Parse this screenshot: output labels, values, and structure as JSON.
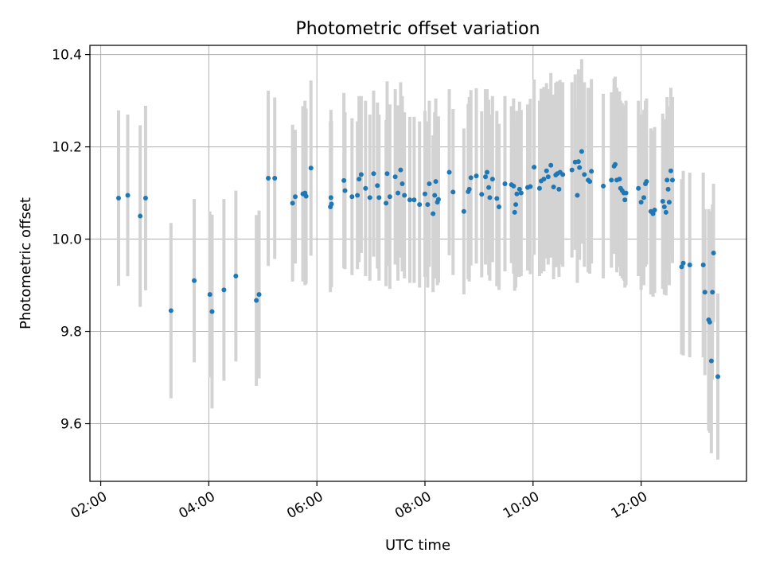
{
  "chart_data": {
    "type": "scatter",
    "title": "Photometric offset variation",
    "xlabel": "UTC time",
    "ylabel": "Photometric offset",
    "xlim": [
      1.8,
      13.95
    ],
    "ylim": [
      9.475,
      10.42
    ],
    "x_ticks": [
      {
        "value": 2,
        "label": "02:00"
      },
      {
        "value": 4,
        "label": "04:00"
      },
      {
        "value": 6,
        "label": "06:00"
      },
      {
        "value": 8,
        "label": "08:00"
      },
      {
        "value": 10,
        "label": "10:00"
      },
      {
        "value": 12,
        "label": "12:00"
      }
    ],
    "y_ticks": [
      {
        "value": 9.6,
        "label": "9.6"
      },
      {
        "value": 9.8,
        "label": "9.8"
      },
      {
        "value": 10.0,
        "label": "10.0"
      },
      {
        "value": 10.2,
        "label": "10.2"
      },
      {
        "value": 10.4,
        "label": "10.4"
      }
    ],
    "grid": true,
    "marker_color": "#1f77b4",
    "errorbar_color": "#d3d3d3",
    "points": [
      {
        "x": 2.33,
        "y": 10.089,
        "err": 0.19
      },
      {
        "x": 2.5,
        "y": 10.095,
        "err": 0.175
      },
      {
        "x": 2.73,
        "y": 10.05,
        "err": 0.197
      },
      {
        "x": 2.83,
        "y": 10.089,
        "err": 0.2
      },
      {
        "x": 3.3,
        "y": 9.845,
        "err": 0.19
      },
      {
        "x": 3.73,
        "y": 9.91,
        "err": 0.177
      },
      {
        "x": 4.02,
        "y": 9.88,
        "err": 0.18
      },
      {
        "x": 4.06,
        "y": 9.843,
        "err": 0.21
      },
      {
        "x": 4.28,
        "y": 9.89,
        "err": 0.197
      },
      {
        "x": 4.5,
        "y": 9.92,
        "err": 0.185
      },
      {
        "x": 4.88,
        "y": 9.867,
        "err": 0.185
      },
      {
        "x": 4.93,
        "y": 9.88,
        "err": 0.182
      },
      {
        "x": 5.1,
        "y": 10.132,
        "err": 0.19
      },
      {
        "x": 5.22,
        "y": 10.132,
        "err": 0.175
      },
      {
        "x": 5.55,
        "y": 10.078,
        "err": 0.17
      },
      {
        "x": 5.6,
        "y": 10.092,
        "err": 0.145
      },
      {
        "x": 5.74,
        "y": 10.098,
        "err": 0.19
      },
      {
        "x": 5.78,
        "y": 10.1,
        "err": 0.2
      },
      {
        "x": 5.8,
        "y": 10.093,
        "err": 0.19
      },
      {
        "x": 5.89,
        "y": 10.154,
        "err": 0.19
      },
      {
        "x": 6.25,
        "y": 10.07,
        "err": 0.185
      },
      {
        "x": 6.27,
        "y": 10.076,
        "err": 0.18
      },
      {
        "x": 6.26,
        "y": 10.09,
        "err": 0.19
      },
      {
        "x": 6.5,
        "y": 10.127,
        "err": 0.19
      },
      {
        "x": 6.52,
        "y": 10.105,
        "err": 0.17
      },
      {
        "x": 6.65,
        "y": 10.092,
        "err": 0.17
      },
      {
        "x": 6.75,
        "y": 10.095,
        "err": 0.16
      },
      {
        "x": 6.78,
        "y": 10.13,
        "err": 0.18
      },
      {
        "x": 6.82,
        "y": 10.14,
        "err": 0.17
      },
      {
        "x": 6.9,
        "y": 10.11,
        "err": 0.19
      },
      {
        "x": 6.98,
        "y": 10.09,
        "err": 0.18
      },
      {
        "x": 7.05,
        "y": 10.142,
        "err": 0.18
      },
      {
        "x": 7.12,
        "y": 10.116,
        "err": 0.18
      },
      {
        "x": 7.15,
        "y": 10.09,
        "err": 0.18
      },
      {
        "x": 7.28,
        "y": 10.078,
        "err": 0.18
      },
      {
        "x": 7.3,
        "y": 10.142,
        "err": 0.2
      },
      {
        "x": 7.35,
        "y": 10.092,
        "err": 0.2
      },
      {
        "x": 7.45,
        "y": 10.135,
        "err": 0.19
      },
      {
        "x": 7.5,
        "y": 10.1,
        "err": 0.19
      },
      {
        "x": 7.55,
        "y": 10.15,
        "err": 0.19
      },
      {
        "x": 7.58,
        "y": 10.12,
        "err": 0.19
      },
      {
        "x": 7.62,
        "y": 10.095,
        "err": 0.18
      },
      {
        "x": 7.72,
        "y": 10.085,
        "err": 0.18
      },
      {
        "x": 7.8,
        "y": 10.085,
        "err": 0.18
      },
      {
        "x": 7.9,
        "y": 10.075,
        "err": 0.18
      },
      {
        "x": 8.0,
        "y": 10.098,
        "err": 0.18
      },
      {
        "x": 8.05,
        "y": 10.075,
        "err": 0.18
      },
      {
        "x": 8.08,
        "y": 10.12,
        "err": 0.18
      },
      {
        "x": 8.15,
        "y": 10.055,
        "err": 0.17
      },
      {
        "x": 8.18,
        "y": 10.095,
        "err": 0.18
      },
      {
        "x": 8.2,
        "y": 10.125,
        "err": 0.18
      },
      {
        "x": 8.23,
        "y": 10.08,
        "err": 0.18
      },
      {
        "x": 8.25,
        "y": 10.086,
        "err": 0.18
      },
      {
        "x": 8.45,
        "y": 10.145,
        "err": 0.18
      },
      {
        "x": 8.52,
        "y": 10.102,
        "err": 0.18
      },
      {
        "x": 8.72,
        "y": 10.06,
        "err": 0.18
      },
      {
        "x": 8.8,
        "y": 10.103,
        "err": 0.19
      },
      {
        "x": 8.82,
        "y": 10.108,
        "err": 0.2
      },
      {
        "x": 8.85,
        "y": 10.133,
        "err": 0.19
      },
      {
        "x": 8.95,
        "y": 10.137,
        "err": 0.19
      },
      {
        "x": 9.05,
        "y": 10.097,
        "err": 0.18
      },
      {
        "x": 9.12,
        "y": 10.135,
        "err": 0.19
      },
      {
        "x": 9.15,
        "y": 10.145,
        "err": 0.18
      },
      {
        "x": 9.18,
        "y": 10.112,
        "err": 0.19
      },
      {
        "x": 9.2,
        "y": 10.09,
        "err": 0.18
      },
      {
        "x": 9.25,
        "y": 10.13,
        "err": 0.18
      },
      {
        "x": 9.33,
        "y": 10.088,
        "err": 0.19
      },
      {
        "x": 9.37,
        "y": 10.07,
        "err": 0.18
      },
      {
        "x": 9.48,
        "y": 10.12,
        "err": 0.19
      },
      {
        "x": 9.6,
        "y": 10.118,
        "err": 0.17
      },
      {
        "x": 9.64,
        "y": 10.115,
        "err": 0.19
      },
      {
        "x": 9.66,
        "y": 10.058,
        "err": 0.17
      },
      {
        "x": 9.68,
        "y": 10.075,
        "err": 0.18
      },
      {
        "x": 9.7,
        "y": 10.098,
        "err": 0.18
      },
      {
        "x": 9.75,
        "y": 10.108,
        "err": 0.19
      },
      {
        "x": 9.78,
        "y": 10.1,
        "err": 0.18
      },
      {
        "x": 9.9,
        "y": 10.112,
        "err": 0.18
      },
      {
        "x": 9.95,
        "y": 10.114,
        "err": 0.19
      },
      {
        "x": 10.02,
        "y": 10.156,
        "err": 0.19
      },
      {
        "x": 10.12,
        "y": 10.11,
        "err": 0.19
      },
      {
        "x": 10.15,
        "y": 10.126,
        "err": 0.2
      },
      {
        "x": 10.2,
        "y": 10.13,
        "err": 0.2
      },
      {
        "x": 10.25,
        "y": 10.148,
        "err": 0.19
      },
      {
        "x": 10.28,
        "y": 10.135,
        "err": 0.19
      },
      {
        "x": 10.33,
        "y": 10.16,
        "err": 0.2
      },
      {
        "x": 10.38,
        "y": 10.113,
        "err": 0.2
      },
      {
        "x": 10.42,
        "y": 10.139,
        "err": 0.2
      },
      {
        "x": 10.45,
        "y": 10.142,
        "err": 0.2
      },
      {
        "x": 10.48,
        "y": 10.108,
        "err": 0.19
      },
      {
        "x": 10.5,
        "y": 10.145,
        "err": 0.2
      },
      {
        "x": 10.55,
        "y": 10.14,
        "err": 0.2
      },
      {
        "x": 10.72,
        "y": 10.15,
        "err": 0.19
      },
      {
        "x": 10.78,
        "y": 10.167,
        "err": 0.19
      },
      {
        "x": 10.82,
        "y": 10.095,
        "err": 0.19
      },
      {
        "x": 10.84,
        "y": 10.168,
        "err": 0.2
      },
      {
        "x": 10.86,
        "y": 10.155,
        "err": 0.2
      },
      {
        "x": 10.9,
        "y": 10.19,
        "err": 0.2
      },
      {
        "x": 10.95,
        "y": 10.14,
        "err": 0.2
      },
      {
        "x": 11.02,
        "y": 10.128,
        "err": 0.2
      },
      {
        "x": 11.05,
        "y": 10.125,
        "err": 0.2
      },
      {
        "x": 11.08,
        "y": 10.147,
        "err": 0.2
      },
      {
        "x": 11.3,
        "y": 10.115,
        "err": 0.2
      },
      {
        "x": 11.45,
        "y": 10.128,
        "err": 0.19
      },
      {
        "x": 11.5,
        "y": 10.158,
        "err": 0.19
      },
      {
        "x": 11.52,
        "y": 10.162,
        "err": 0.19
      },
      {
        "x": 11.55,
        "y": 10.128,
        "err": 0.2
      },
      {
        "x": 11.6,
        "y": 10.13,
        "err": 0.19
      },
      {
        "x": 11.62,
        "y": 10.11,
        "err": 0.19
      },
      {
        "x": 11.65,
        "y": 10.105,
        "err": 0.19
      },
      {
        "x": 11.68,
        "y": 10.1,
        "err": 0.19
      },
      {
        "x": 11.7,
        "y": 10.085,
        "err": 0.19
      },
      {
        "x": 11.72,
        "y": 10.1,
        "err": 0.2
      },
      {
        "x": 11.95,
        "y": 10.11,
        "err": 0.19
      },
      {
        "x": 12.0,
        "y": 10.08,
        "err": 0.19
      },
      {
        "x": 12.05,
        "y": 10.09,
        "err": 0.19
      },
      {
        "x": 12.08,
        "y": 10.12,
        "err": 0.18
      },
      {
        "x": 12.1,
        "y": 10.125,
        "err": 0.18
      },
      {
        "x": 12.18,
        "y": 10.06,
        "err": 0.18
      },
      {
        "x": 12.22,
        "y": 10.055,
        "err": 0.18
      },
      {
        "x": 12.25,
        "y": 10.063,
        "err": 0.18
      },
      {
        "x": 12.4,
        "y": 10.082,
        "err": 0.19
      },
      {
        "x": 12.43,
        "y": 10.07,
        "err": 0.19
      },
      {
        "x": 12.46,
        "y": 10.058,
        "err": 0.18
      },
      {
        "x": 12.48,
        "y": 10.128,
        "err": 0.18
      },
      {
        "x": 12.5,
        "y": 10.108,
        "err": 0.18
      },
      {
        "x": 12.52,
        "y": 10.08,
        "err": 0.18
      },
      {
        "x": 12.55,
        "y": 10.148,
        "err": 0.18
      },
      {
        "x": 12.58,
        "y": 10.128,
        "err": 0.18
      },
      {
        "x": 12.75,
        "y": 9.94,
        "err": 0.19
      },
      {
        "x": 12.78,
        "y": 9.948,
        "err": 0.2
      },
      {
        "x": 12.9,
        "y": 9.944,
        "err": 0.2
      },
      {
        "x": 13.15,
        "y": 9.944,
        "err": 0.2
      },
      {
        "x": 13.18,
        "y": 9.885,
        "err": 0.18
      },
      {
        "x": 13.25,
        "y": 9.825,
        "err": 0.24
      },
      {
        "x": 13.27,
        "y": 9.82,
        "err": 0.24
      },
      {
        "x": 13.3,
        "y": 9.736,
        "err": 0.2
      },
      {
        "x": 13.32,
        "y": 9.885,
        "err": 0.19
      },
      {
        "x": 13.34,
        "y": 9.97,
        "err": 0.15
      },
      {
        "x": 13.42,
        "y": 9.702,
        "err": 0.18
      }
    ]
  }
}
